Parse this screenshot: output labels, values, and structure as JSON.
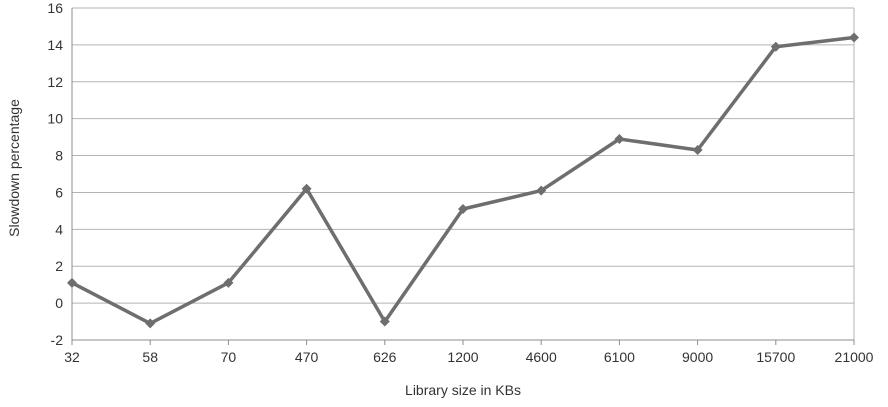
{
  "chart_data": {
    "type": "line",
    "title": "",
    "xlabel": "Library size in KBs",
    "ylabel": "Slowdown percentage",
    "categories": [
      "32",
      "58",
      "70",
      "470",
      "626",
      "1200",
      "4600",
      "6100",
      "9000",
      "15700",
      "21000"
    ],
    "series": [
      {
        "values": [
          1.1,
          -1.1,
          1.1,
          6.2,
          -1.0,
          5.1,
          6.1,
          8.9,
          8.3,
          13.9,
          14.4
        ]
      }
    ],
    "ylim": [
      -2,
      16
    ],
    "yticks": [
      "-2",
      "0",
      "2",
      "4",
      "6",
      "8",
      "10",
      "12",
      "14",
      "16"
    ],
    "grid": true,
    "legend": "none",
    "colors": {
      "line": "#6e6e6e",
      "marker": "#6e6e6e",
      "grid": "#b3b3b3",
      "axis": "#8c8c8c",
      "text": "#333333"
    }
  }
}
